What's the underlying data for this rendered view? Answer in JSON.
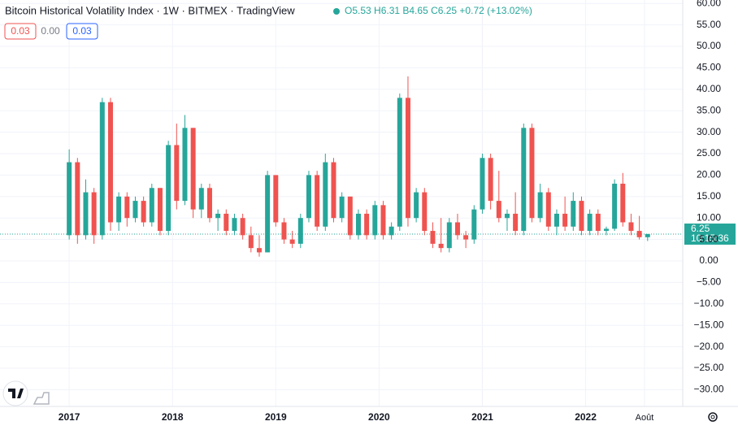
{
  "header": {
    "title": "Bitcoin Historical Volatility Index · 1W · BITMEX · TradingView",
    "ohlc": "O5.53 H6.31 B4.65 C6.25 +0.72 (+13.02%)",
    "indicators": [
      "0.03",
      "0.00",
      "0.03"
    ],
    "last_price": "6.25",
    "countdown": "10:15:36"
  },
  "chart_data": {
    "type": "candlestick",
    "up_color": "#26a69a",
    "down_color": "#ef5350",
    "grid": true,
    "xlim": [
      2016.33,
      2022.94
    ],
    "ylim": [
      -33.9,
      60.8
    ],
    "xticks": [
      2017,
      2018,
      2019,
      2020,
      2021,
      2022,
      {
        "value": 2022.57,
        "label": "Août"
      }
    ],
    "yticks": [
      {
        "value": 60,
        "label": "60.00"
      },
      {
        "value": 55,
        "label": "55.00"
      },
      {
        "value": 50,
        "label": "50.00"
      },
      {
        "value": 45,
        "label": "45.00"
      },
      {
        "value": 40,
        "label": "40.00"
      },
      {
        "value": 35,
        "label": "35.00"
      },
      {
        "value": 30,
        "label": "30.00"
      },
      {
        "value": 25,
        "label": "25.00"
      },
      {
        "value": 20,
        "label": "20.00"
      },
      {
        "value": 15,
        "label": "15.00"
      },
      {
        "value": 10,
        "label": "10.00"
      },
      {
        "value": 5,
        "label": "5.00"
      },
      {
        "value": 0,
        "label": "0.00"
      },
      {
        "value": -5,
        "label": "−5.00"
      },
      {
        "value": -10,
        "label": "−10.00"
      },
      {
        "value": -15,
        "label": "−15.00"
      },
      {
        "value": -20,
        "label": "−20.00"
      },
      {
        "value": -25,
        "label": "−25.00"
      },
      {
        "value": -30,
        "label": "−30.00"
      }
    ],
    "last_value": 6.25,
    "x": [
      2017.0,
      2017.08,
      2017.16,
      2017.24,
      2017.32,
      2017.4,
      2017.48,
      2017.56,
      2017.64,
      2017.72,
      2017.8,
      2017.88,
      2017.96,
      2018.04,
      2018.12,
      2018.2,
      2018.28,
      2018.36,
      2018.44,
      2018.52,
      2018.6,
      2018.68,
      2018.76,
      2018.84,
      2018.92,
      2019.0,
      2019.08,
      2019.16,
      2019.24,
      2019.32,
      2019.4,
      2019.48,
      2019.56,
      2019.64,
      2019.72,
      2019.8,
      2019.88,
      2019.96,
      2020.04,
      2020.12,
      2020.2,
      2020.28,
      2020.36,
      2020.44,
      2020.52,
      2020.6,
      2020.68,
      2020.76,
      2020.84,
      2020.92,
      2021.0,
      2021.08,
      2021.16,
      2021.24,
      2021.32,
      2021.4,
      2021.48,
      2021.56,
      2021.64,
      2021.72,
      2021.8,
      2021.88,
      2021.96,
      2022.04,
      2022.12,
      2022.2,
      2022.28,
      2022.36,
      2022.44,
      2022.52,
      2022.6
    ],
    "open": [
      6,
      23,
      6,
      16,
      6,
      37,
      9,
      15,
      10,
      14,
      9,
      17,
      7,
      27,
      14,
      31,
      12,
      17,
      10,
      11,
      7,
      10,
      6,
      3,
      2,
      20,
      9,
      5,
      4,
      10,
      20,
      8,
      23,
      10,
      15,
      6,
      11,
      6,
      13,
      6,
      8,
      38,
      10,
      16,
      7,
      4,
      3,
      9,
      6,
      5,
      12,
      24,
      14,
      10,
      11,
      7,
      31,
      10,
      16,
      8,
      11,
      8,
      14,
      7,
      11,
      7,
      7.5,
      18,
      9,
      7,
      5.53
    ],
    "high": [
      26,
      24,
      19,
      17,
      38,
      38,
      16,
      16,
      15,
      15,
      18,
      17,
      28,
      32,
      34,
      31,
      18,
      18,
      12,
      12,
      11,
      11,
      8,
      6,
      21,
      20,
      10,
      7,
      11,
      21,
      21,
      25,
      24,
      16,
      15,
      12,
      12,
      14,
      14,
      9,
      39,
      43,
      17,
      17,
      9,
      10,
      10,
      11,
      7,
      13,
      25,
      25,
      21,
      12,
      16,
      32,
      32,
      18,
      17,
      12,
      15,
      16,
      15,
      12,
      12,
      8,
      19,
      20.5,
      11,
      10.5,
      6.31
    ],
    "low": [
      5,
      4,
      5,
      4,
      5,
      7,
      7,
      8,
      9,
      8,
      8,
      6,
      6,
      12,
      13,
      10,
      10,
      9,
      7,
      6,
      6,
      5,
      2,
      1,
      2,
      8,
      4,
      3,
      3,
      9,
      7,
      7,
      9,
      9,
      5,
      5,
      5,
      5,
      5,
      5,
      7,
      8,
      9,
      6,
      3,
      2,
      2,
      5,
      3,
      4,
      11,
      12,
      9,
      7,
      6,
      6,
      9,
      9,
      7,
      6,
      7,
      7,
      6,
      6,
      6,
      6,
      7,
      8,
      6,
      5,
      4.65
    ],
    "close": [
      23,
      6,
      16,
      6,
      37,
      9,
      15,
      10,
      14,
      9,
      17,
      7,
      27,
      14,
      31,
      12,
      17,
      10,
      11,
      7,
      10,
      6,
      3,
      2,
      20,
      9,
      5,
      4,
      10,
      20,
      8,
      23,
      10,
      15,
      6,
      11,
      6,
      13,
      6,
      8,
      38,
      10,
      16,
      7,
      4,
      3,
      9,
      6,
      5,
      12,
      24,
      14,
      10,
      11,
      7,
      31,
      10,
      16,
      8,
      11,
      8,
      14,
      7,
      11,
      7,
      7.5,
      18,
      9,
      7,
      5.53,
      6.25
    ]
  }
}
